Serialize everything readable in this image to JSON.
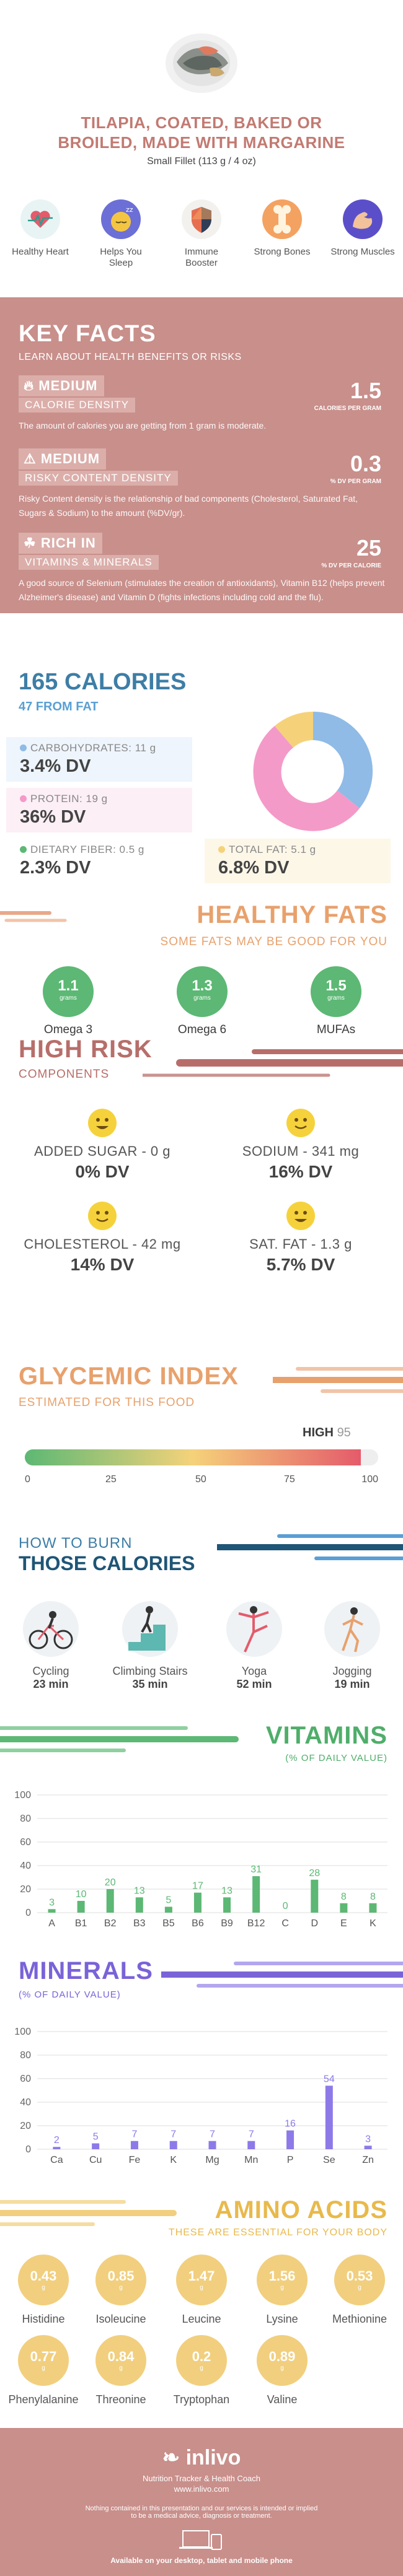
{
  "header": {
    "title_line1": "TILAPIA, COATED, BAKED OR",
    "title_line2": "BROILED, MADE WITH MARGARINE",
    "serving": "Small Fillet (113 g / 4 oz)"
  },
  "benefits": [
    {
      "label": "Healthy Heart",
      "icon": "heart-icon",
      "color": "#2a9d8f"
    },
    {
      "label": "Helps You Sleep",
      "icon": "sleep-icon",
      "color": "#f4c542"
    },
    {
      "label": "Immune Booster",
      "icon": "shield-icon",
      "color": "#e76f51"
    },
    {
      "label": "Strong Bones",
      "icon": "bone-icon",
      "color": "#f4a261"
    },
    {
      "label": "Strong Muscles",
      "icon": "muscle-icon",
      "color": "#6c5ce7"
    }
  ],
  "key_facts": {
    "title": "KEY FACTS",
    "subtitle": "LEARN ABOUT HEALTH BENEFITS OR RISKS",
    "facts": [
      {
        "tag": "MEDIUM",
        "tag2": "CALORIE DENSITY",
        "value": "1.5",
        "unit": "CALORIES PER GRAM",
        "desc": "The amount of calories you are getting from 1 gram is moderate."
      },
      {
        "tag": "MEDIUM",
        "tag2": "RISKY CONTENT DENSITY",
        "value": "0.3",
        "unit": "% DV PER GRAM",
        "desc": "Risky Content density is the relationship of bad components (Cholesterol, Saturated Fat, Sugars & Sodium) to the amount (%DV/gr)."
      },
      {
        "tag": "RICH IN",
        "tag2": "VITAMINS & MINERALS",
        "value": "25",
        "unit": "% DV PER CALORIE",
        "desc": "A good source of Selenium (stimulates the creation of antioxidants), Vitamin B12 (helps prevent Alzheimer's disease) and Vitamin D (fights infections including cold and the flu)."
      }
    ]
  },
  "calories": {
    "title": "165 CALORIES",
    "subtitle": "47 FROM FAT",
    "items": [
      {
        "label": "CARBOHYDRATES: 11 g",
        "dv": "3.4% DV",
        "color": "#8fbbe6"
      },
      {
        "label": "PROTEIN: 19 g",
        "dv": "36% DV",
        "color": "#f49ac8"
      },
      {
        "label": "DIETARY FIBER: 0.5 g",
        "dv": "2.3% DV",
        "color": "#5cb874"
      },
      {
        "label": "TOTAL FAT: 5.1 g",
        "dv": "6.8% DV",
        "color": "#f5d27a"
      }
    ]
  },
  "healthy_fats": {
    "title": "HEALTHY FATS",
    "subtitle": "SOME FATS MAY BE GOOD FOR YOU",
    "unit": "grams",
    "items": [
      {
        "value": "1.1",
        "label": "Omega 3"
      },
      {
        "value": "1.3",
        "label": "Omega 6"
      },
      {
        "value": "1.5",
        "label": "MUFAs"
      }
    ]
  },
  "high_risk": {
    "title": "HIGH RISK",
    "subtitle": "COMPONENTS",
    "items": [
      {
        "label": "ADDED SUGAR - 0 g",
        "dv": "0% DV"
      },
      {
        "label": "SODIUM - 341 mg",
        "dv": "16% DV"
      },
      {
        "label": "CHOLESTEROL - 42 mg",
        "dv": "14% DV"
      },
      {
        "label": "SAT. FAT - 1.3 g",
        "dv": "5.7% DV"
      }
    ]
  },
  "glycemic": {
    "title": "GLYCEMIC INDEX",
    "subtitle": "ESTIMATED FOR THIS FOOD",
    "level": "HIGH",
    "value": 95,
    "value_text": "95",
    "ticks": [
      "0",
      "25",
      "50",
      "75",
      "100"
    ]
  },
  "burn": {
    "title1": "HOW TO BURN",
    "title2": "THOSE CALORIES",
    "items": [
      {
        "name": "Cycling",
        "minutes": "23 min",
        "icon": "cycling-icon"
      },
      {
        "name": "Climbing Stairs",
        "minutes": "35 min",
        "icon": "stairs-icon"
      },
      {
        "name": "Yoga",
        "minutes": "52 min",
        "icon": "yoga-icon"
      },
      {
        "name": "Jogging",
        "minutes": "19 min",
        "icon": "jogging-icon"
      }
    ]
  },
  "vitamins": {
    "title": "VITAMINS",
    "subtitle": "(% OF DAILY VALUE)"
  },
  "minerals": {
    "title": "MINERALS",
    "subtitle": "(% OF DAILY VALUE)"
  },
  "amino": {
    "title": "AMINO ACIDS",
    "subtitle": "THESE ARE ESSENTIAL FOR YOUR BODY",
    "unit": "g",
    "items": [
      {
        "value": "0.43",
        "label": "Histidine"
      },
      {
        "value": "0.85",
        "label": "Isoleucine"
      },
      {
        "value": "1.47",
        "label": "Leucine"
      },
      {
        "value": "1.56",
        "label": "Lysine"
      },
      {
        "value": "0.53",
        "label": "Methionine"
      },
      {
        "value": "0.77",
        "label": "Phenylalanine"
      },
      {
        "value": "0.84",
        "label": "Threonine"
      },
      {
        "value": "0.2",
        "label": "Tryptophan"
      },
      {
        "value": "0.89",
        "label": "Valine"
      }
    ]
  },
  "footer": {
    "brand": "inlivo",
    "tagline": "Nutrition Tracker & Health Coach",
    "url": "www.inlivo.com",
    "disclaimer1": "Nothing contained in this presentation and our services is intended or implied",
    "disclaimer2": "to be a medical advice, diagnosis or treatment.",
    "available": "Available on your desktop, tablet and mobile phone"
  },
  "chart_data": [
    {
      "type": "bar",
      "categories": [
        "A",
        "B1",
        "B2",
        "B3",
        "B5",
        "B6",
        "B9",
        "B12",
        "C",
        "D",
        "E",
        "K"
      ],
      "values": [
        3,
        10,
        20,
        13,
        5,
        17,
        13,
        31,
        0,
        28,
        8,
        8
      ],
      "title": "VITAMINS",
      "ylim": [
        0,
        100
      ],
      "yticks": [
        "0",
        "20",
        "40",
        "60",
        "80",
        "100"
      ],
      "color": "#5cb874"
    },
    {
      "type": "bar",
      "categories": [
        "Ca",
        "Cu",
        "Fe",
        "K",
        "Mg",
        "Mn",
        "P",
        "Se",
        "Zn"
      ],
      "values": [
        2,
        5,
        7,
        7,
        7,
        7,
        16,
        54,
        3
      ],
      "title": "MINERALS",
      "ylim": [
        0,
        100
      ],
      "yticks": [
        "0",
        "20",
        "40",
        "60",
        "80",
        "100"
      ],
      "color": "#8d7ae8"
    }
  ]
}
